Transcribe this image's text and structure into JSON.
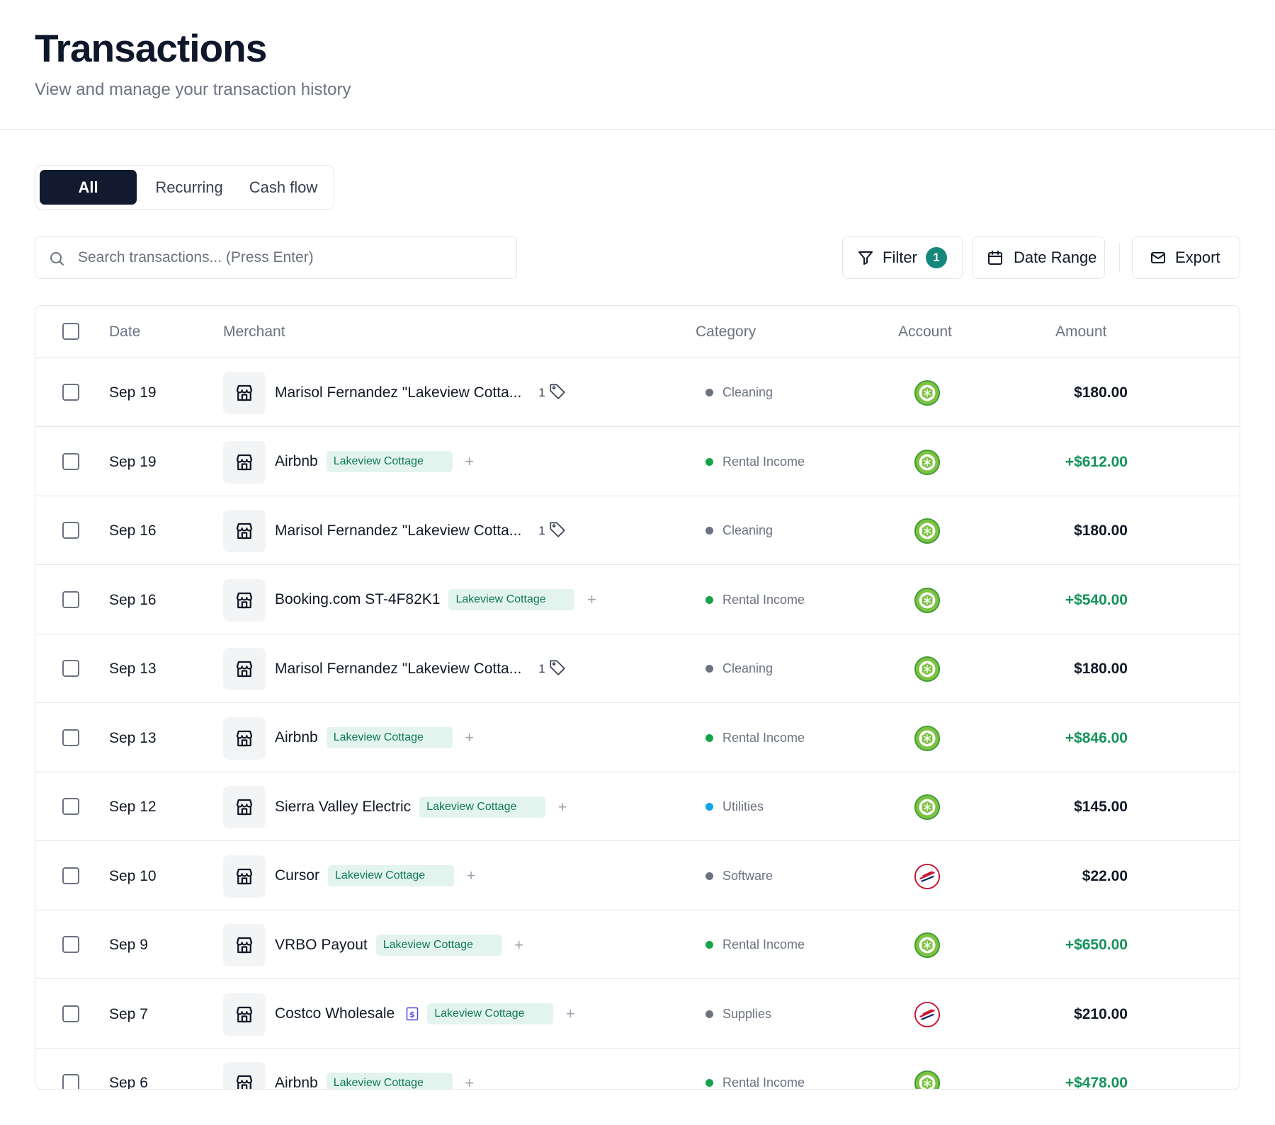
{
  "header": {
    "title": "Transactions",
    "subtitle": "View and manage your transaction history"
  },
  "tabs": [
    {
      "label": "All",
      "active": true
    },
    {
      "label": "Recurring",
      "active": false
    },
    {
      "label": "Cash flow",
      "active": false
    }
  ],
  "search": {
    "placeholder": "Search transactions... (Press Enter)",
    "value": ""
  },
  "toolbar": {
    "filter_label": "Filter",
    "filter_count": "1",
    "date_range_label": "Date Range",
    "export_label": "Export"
  },
  "table": {
    "columns": {
      "date": "Date",
      "merchant": "Merchant",
      "category": "Category",
      "account": "Account",
      "amount": "Amount"
    },
    "rows": [
      {
        "date": "Sep 19",
        "merchant": "Marisol Fernandez \"Lakeview Cotta...",
        "tag_count": "1",
        "tag": "",
        "category": "Cleaning",
        "category_color": "#6b7280",
        "account": "green-bank-icon",
        "amount": "$180.00",
        "positive": false
      },
      {
        "date": "Sep 19",
        "merchant": "Airbnb",
        "tag_count": "",
        "tag": "Lakeview Cottage",
        "category": "Rental Income",
        "category_color": "#16a34a",
        "account": "green-bank-icon",
        "amount": "+$612.00",
        "positive": true
      },
      {
        "date": "Sep 16",
        "merchant": "Marisol Fernandez \"Lakeview Cotta...",
        "tag_count": "1",
        "tag": "",
        "category": "Cleaning",
        "category_color": "#6b7280",
        "account": "green-bank-icon",
        "amount": "$180.00",
        "positive": false
      },
      {
        "date": "Sep 16",
        "merchant": "Booking.com ST-4F82K1",
        "tag_count": "",
        "tag": "Lakeview Cottage",
        "category": "Rental Income",
        "category_color": "#16a34a",
        "account": "green-bank-icon",
        "amount": "+$540.00",
        "positive": true
      },
      {
        "date": "Sep 13",
        "merchant": "Marisol Fernandez \"Lakeview Cotta...",
        "tag_count": "1",
        "tag": "",
        "category": "Cleaning",
        "category_color": "#6b7280",
        "account": "green-bank-icon",
        "amount": "$180.00",
        "positive": false
      },
      {
        "date": "Sep 13",
        "merchant": "Airbnb",
        "tag_count": "",
        "tag": "Lakeview Cottage",
        "category": "Rental Income",
        "category_color": "#16a34a",
        "account": "green-bank-icon",
        "amount": "+$846.00",
        "positive": true
      },
      {
        "date": "Sep 12",
        "merchant": "Sierra Valley Electric",
        "tag_count": "",
        "tag": "Lakeview Cottage",
        "category": "Utilities",
        "category_color": "#0ea5e9",
        "account": "green-bank-icon",
        "amount": "$145.00",
        "positive": false
      },
      {
        "date": "Sep 10",
        "merchant": "Cursor",
        "tag_count": "",
        "tag": "Lakeview Cottage",
        "category": "Software",
        "category_color": "#6b7280",
        "account": "red-bank-icon",
        "amount": "$22.00",
        "positive": false
      },
      {
        "date": "Sep 9",
        "merchant": "VRBO Payout",
        "tag_count": "",
        "tag": "Lakeview Cottage",
        "category": "Rental Income",
        "category_color": "#16a34a",
        "account": "green-bank-icon",
        "amount": "+$650.00",
        "positive": true
      },
      {
        "date": "Sep 7",
        "merchant": "Costco Wholesale",
        "tag_count": "",
        "receipt": true,
        "tag": "Lakeview Cottage",
        "category": "Supplies",
        "category_color": "#6b7280",
        "account": "red-bank-icon",
        "amount": "$210.00",
        "positive": false
      },
      {
        "date": "Sep 6",
        "merchant": "Airbnb",
        "tag_count": "",
        "tag": "Lakeview Cottage",
        "category": "Rental Income",
        "category_color": "#16a34a",
        "account": "green-bank-icon",
        "amount": "+$478.00",
        "positive": true
      }
    ]
  }
}
